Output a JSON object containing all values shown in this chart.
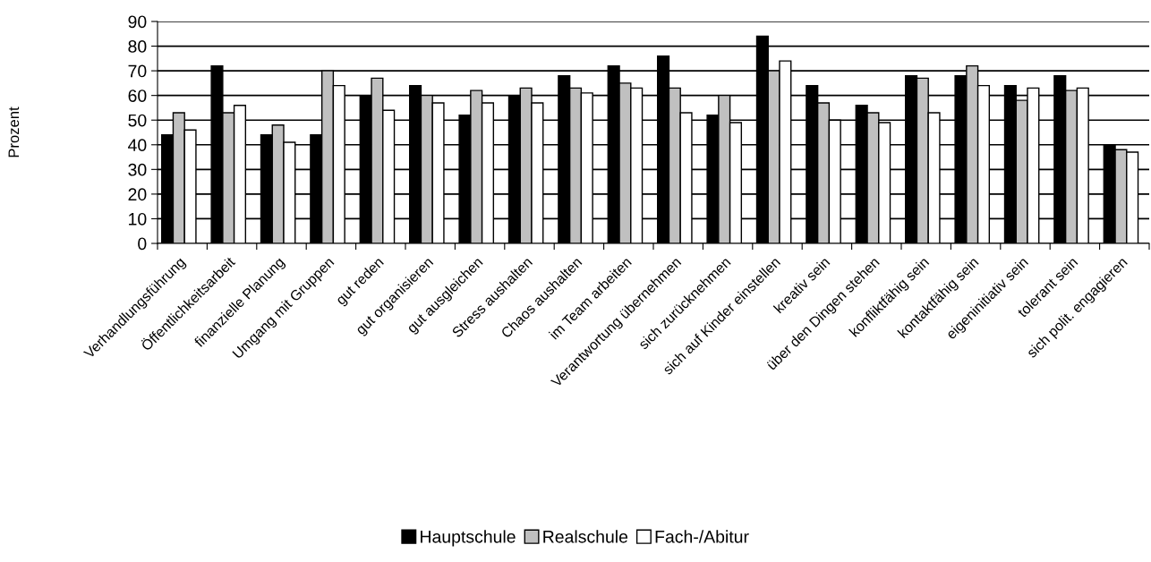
{
  "chart_data": {
    "type": "bar",
    "ylabel": "Prozent",
    "categories": [
      "Verhandlungsführung",
      "Öffentlichkeitsarbeit",
      "finanzielle Planung",
      "Umgang mit Gruppen",
      "gut reden",
      "gut organisieren",
      "gut ausgleichen",
      "Stress aushalten",
      "Chaos aushalten",
      "im Team arbeiten",
      "Verantwortung übernehmen",
      "sich zurücknehmen",
      "sich auf Kinder einstellen",
      "kreativ sein",
      "über den Dingen stehen",
      "konfliktfähig sein",
      "kontaktfähig sein",
      "eigeninitiativ sein",
      "tolerant sein",
      "sich polit. engagieren"
    ],
    "series": [
      {
        "name": "Hauptschule",
        "color": "#000000",
        "values": [
          44,
          72,
          44,
          44,
          60,
          64,
          52,
          60,
          68,
          72,
          76,
          52,
          84,
          64,
          56,
          68,
          68,
          64,
          68,
          40
        ]
      },
      {
        "name": "Realschule",
        "color": "#c0c0c0",
        "values": [
          53,
          53,
          48,
          70,
          67,
          60,
          62,
          63,
          63,
          65,
          63,
          60,
          70,
          57,
          53,
          67,
          72,
          58,
          62,
          38
        ]
      },
      {
        "name": "Fach-/Abitur",
        "color": "#ffffff",
        "values": [
          46,
          56,
          41,
          64,
          54,
          57,
          57,
          57,
          61,
          63,
          53,
          49,
          74,
          50,
          49,
          53,
          64,
          63,
          63,
          37
        ]
      }
    ],
    "ylim": [
      0,
      90
    ],
    "yticks": [
      0,
      10,
      20,
      30,
      40,
      50,
      60,
      70,
      80,
      90
    ],
    "grid": "y",
    "legend": "bottom"
  }
}
